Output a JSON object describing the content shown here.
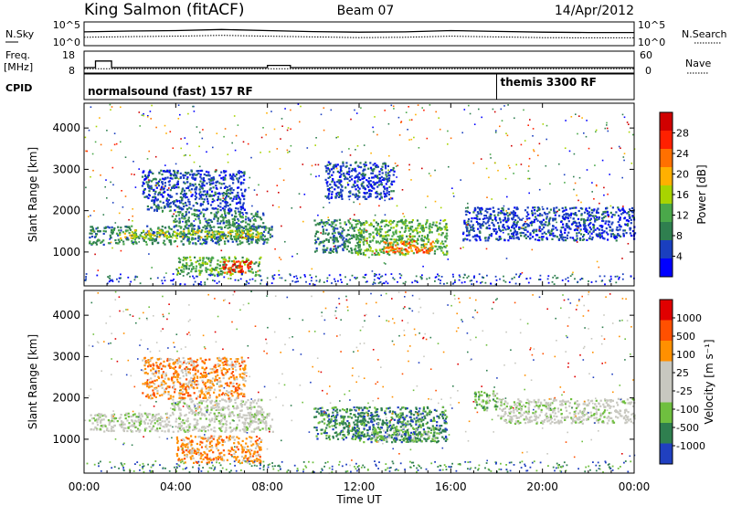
{
  "header": {
    "station": "King Salmon (fitACF)",
    "beam": "Beam 07",
    "date": "14/Apr/2012"
  },
  "noise_panel": {
    "left_label": "N.Sky",
    "right_label": "N.Search",
    "ticks_left": [
      "10^5",
      "10^0"
    ],
    "ticks_right": [
      "10^5",
      "10^0"
    ]
  },
  "freq_panel": {
    "left_label_1": "Freq.",
    "left_label_2": "[MHz]",
    "right_label": "Nave",
    "ticks_left": [
      "18",
      "8"
    ],
    "ticks_right": [
      "60",
      "0"
    ]
  },
  "cpid_panel": {
    "label": "CPID",
    "mode_1": "normalsound (fast) 157 RF",
    "mode_2": "themis 3300 RF",
    "mode_2_start_hour": 18.0
  },
  "x_axis": {
    "label": "Time UT",
    "ticks": [
      "00:00",
      "04:00",
      "08:00",
      "12:00",
      "16:00",
      "20:00",
      "00:00"
    ],
    "range_hours": [
      0,
      24
    ]
  },
  "power_panel": {
    "ylabel": "Slant Range [km]",
    "yticks": [
      "1000",
      "2000",
      "3000",
      "4000"
    ],
    "cbar_label": "Power [dB]",
    "cbar_ticks": [
      "28",
      "24",
      "20",
      "16",
      "12",
      "8",
      "4"
    ]
  },
  "velocity_panel": {
    "ylabel": "Slant Range [km]",
    "yticks": [
      "1000",
      "2000",
      "3000",
      "4000"
    ],
    "cbar_label": "Velocity [m s⁻¹]",
    "cbar_ticks": [
      "1000",
      "500",
      "100",
      "25",
      "-25",
      "-100",
      "-500",
      "-1000"
    ]
  },
  "colors": {
    "power_scale": [
      "#0000ff",
      "#1a3fbf",
      "#2f7f4f",
      "#4aa84a",
      "#a8d400",
      "#ffb000",
      "#ff7000",
      "#ff2000",
      "#d00000"
    ],
    "velocity_scale": [
      "#2040c0",
      "#2f7f4f",
      "#6fbf3f",
      "#c8c8c0",
      "#c8c8c0",
      "#ff9000",
      "#ff5000",
      "#e00000"
    ]
  },
  "chart_data": [
    {
      "type": "line",
      "title": "N.Sky / N.Search",
      "y_scale": "log",
      "ylim": [
        1,
        100000
      ],
      "series": [
        {
          "name": "N.Sky",
          "x": [
            0,
            2,
            4,
            6,
            8,
            10,
            12,
            14,
            16,
            18,
            20,
            22,
            24
          ],
          "y": [
            800,
            1200,
            1500,
            2500,
            1500,
            900,
            700,
            800,
            1500,
            1000,
            700,
            600,
            600
          ]
        },
        {
          "name": "N.Search",
          "x": [
            0,
            2,
            4,
            6,
            8,
            10,
            12,
            14,
            16,
            18,
            20,
            22,
            24
          ],
          "y": [
            60,
            80,
            100,
            150,
            100,
            70,
            50,
            60,
            100,
            70,
            50,
            45,
            45
          ]
        }
      ]
    },
    {
      "type": "line",
      "title": "Freq. [MHz] / Nave",
      "ylim": [
        8,
        18
      ],
      "series": [
        {
          "name": "Freq.",
          "x": [
            0,
            0.5,
            0.5,
            1.2,
            1.2,
            8.0,
            8.0,
            9.0,
            9.0,
            24
          ],
          "y": [
            10.5,
            10.5,
            13.5,
            13.5,
            10.5,
            10.5,
            11.5,
            11.5,
            10.5,
            10.5
          ]
        },
        {
          "name": "Nave",
          "x": [
            0,
            24
          ],
          "y": [
            10,
            10
          ]
        }
      ]
    },
    {
      "type": "heatmap",
      "title": "Power [dB]",
      "xlabel": "Time UT",
      "ylabel": "Slant Range [km]",
      "xlim": [
        0,
        24
      ],
      "ylim": [
        180,
        4600
      ],
      "blobs": [
        {
          "t": [
            0.2,
            8.2
          ],
          "r": [
            1200,
            1650
          ],
          "level": 2
        },
        {
          "t": [
            1.5,
            7.8
          ],
          "r": [
            1350,
            1550
          ],
          "level": 4
        },
        {
          "t": [
            3.8,
            7.8
          ],
          "r": [
            1600,
            2000
          ],
          "level": 2
        },
        {
          "t": [
            4.0,
            7.7
          ],
          "r": [
            450,
            900
          ],
          "level": 3
        },
        {
          "t": [
            6.0,
            7.3
          ],
          "r": [
            500,
            800
          ],
          "level": 7
        },
        {
          "t": [
            10.0,
            12.2
          ],
          "r": [
            1000,
            1800
          ],
          "level": 2
        },
        {
          "t": [
            11.8,
            15.8
          ],
          "r": [
            950,
            1800
          ],
          "level": 3
        },
        {
          "t": [
            13.0,
            15.2
          ],
          "r": [
            1000,
            1300
          ],
          "level": 6
        },
        {
          "t": [
            16.5,
            24.0
          ],
          "r": [
            1300,
            2100
          ],
          "level": 1
        },
        {
          "t": [
            10.5,
            13.5
          ],
          "r": [
            2300,
            3200
          ],
          "level": 1
        },
        {
          "t": [
            2.5,
            7.0
          ],
          "r": [
            2000,
            3000
          ],
          "level": 1
        }
      ]
    },
    {
      "type": "heatmap",
      "title": "Velocity [m s⁻¹]",
      "xlabel": "Time UT",
      "ylabel": "Slant Range [km]",
      "xlim": [
        0,
        24
      ],
      "ylim": [
        180,
        4600
      ],
      "blobs": [
        {
          "t": [
            0.2,
            8.2
          ],
          "r": [
            1200,
            1650
          ],
          "level": 3
        },
        {
          "t": [
            3.8,
            7.8
          ],
          "r": [
            1600,
            2000
          ],
          "level": 3
        },
        {
          "t": [
            4.0,
            7.7
          ],
          "r": [
            450,
            1100
          ],
          "level": 5
        },
        {
          "t": [
            10.0,
            12.2
          ],
          "r": [
            1000,
            1800
          ],
          "level": 1
        },
        {
          "t": [
            11.8,
            15.8
          ],
          "r": [
            950,
            1800
          ],
          "level": 1
        },
        {
          "t": [
            12.5,
            15.5
          ],
          "r": [
            950,
            1300
          ],
          "level": 2
        },
        {
          "t": [
            17.0,
            18.0
          ],
          "r": [
            1700,
            2200
          ],
          "level": 2
        },
        {
          "t": [
            18.0,
            24.0
          ],
          "r": [
            1400,
            2000
          ],
          "level": 3
        },
        {
          "t": [
            2.5,
            7.0
          ],
          "r": [
            2000,
            3000
          ],
          "level": 5
        }
      ]
    }
  ]
}
